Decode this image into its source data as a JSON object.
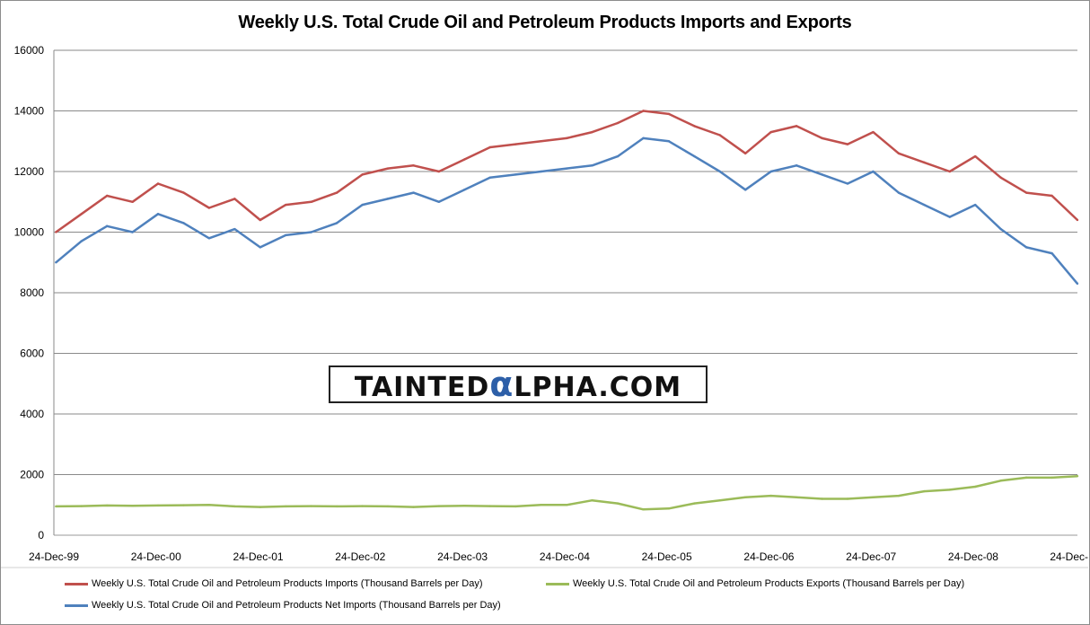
{
  "chart_data": {
    "type": "line",
    "title": "Weekly U.S. Total Crude Oil and Petroleum Products Imports and Exports",
    "xlabel": "",
    "ylabel": "",
    "x_tick_labels": [
      "24-Dec-99",
      "24-Dec-00",
      "24-Dec-01",
      "24-Dec-02",
      "24-Dec-03",
      "24-Dec-04",
      "24-Dec-05",
      "24-Dec-06",
      "24-Dec-07",
      "24-Dec-08",
      "24-Dec-"
    ],
    "y_tick_labels": [
      "0",
      "2000",
      "4000",
      "6000",
      "8000",
      "10000",
      "12000",
      "14000",
      "16000"
    ],
    "ylim": [
      0,
      16000
    ],
    "x_unit": "year",
    "xlim": [
      1999.98,
      2010.0
    ],
    "grid": "horizontal",
    "legend_position": "bottom",
    "series": [
      {
        "name": "Weekly U.S. Total Crude Oil and Petroleum Products Imports  (Thousand  Barrels per Day)",
        "color": "#c0504d",
        "x": [
          2000.0,
          2000.25,
          2000.5,
          2000.75,
          2001.0,
          2001.25,
          2001.5,
          2001.75,
          2002.0,
          2002.25,
          2002.5,
          2002.75,
          2003.0,
          2003.25,
          2003.5,
          2003.75,
          2004.0,
          2004.25,
          2004.5,
          2004.75,
          2005.0,
          2005.25,
          2005.5,
          2005.75,
          2006.0,
          2006.25,
          2006.5,
          2006.75,
          2007.0,
          2007.25,
          2007.5,
          2007.75,
          2008.0,
          2008.25,
          2008.5,
          2008.75,
          2009.0,
          2009.25,
          2009.5,
          2009.75,
          2010.0
        ],
        "values": [
          10000,
          10600,
          11200,
          11000,
          11600,
          11300,
          10800,
          11100,
          10400,
          10900,
          11000,
          11300,
          11900,
          12100,
          12200,
          12000,
          12400,
          12800,
          12900,
          13000,
          13100,
          13300,
          13600,
          14000,
          13900,
          13500,
          13200,
          12600,
          13300,
          13500,
          13100,
          12900,
          13300,
          12600,
          12300,
          12000,
          12500,
          11800,
          11300,
          11200,
          10400
        ]
      },
      {
        "name": "Weekly U.S. Total Crude Oil and Petroleum Products Exports  (Thousand  Barrels per Day)",
        "color": "#9bbb59",
        "x": [
          2000.0,
          2000.25,
          2000.5,
          2000.75,
          2001.0,
          2001.25,
          2001.5,
          2001.75,
          2002.0,
          2002.25,
          2002.5,
          2002.75,
          2003.0,
          2003.25,
          2003.5,
          2003.75,
          2004.0,
          2004.25,
          2004.5,
          2004.75,
          2005.0,
          2005.25,
          2005.5,
          2005.75,
          2006.0,
          2006.25,
          2006.5,
          2006.75,
          2007.0,
          2007.25,
          2007.5,
          2007.75,
          2008.0,
          2008.25,
          2008.5,
          2008.75,
          2009.0,
          2009.25,
          2009.5,
          2009.75,
          2010.0
        ],
        "values": [
          950,
          960,
          980,
          970,
          980,
          990,
          1000,
          950,
          930,
          950,
          960,
          950,
          960,
          950,
          930,
          960,
          970,
          960,
          950,
          1000,
          1000,
          1150,
          1050,
          850,
          880,
          1050,
          1150,
          1250,
          1300,
          1250,
          1200,
          1200,
          1250,
          1300,
          1450,
          1500,
          1600,
          1800,
          1900,
          1900,
          1950
        ]
      },
      {
        "name": "Weekly U.S. Total Crude Oil and Petroleum Products Net Imports  (Thousand  Barrels per Day)",
        "color": "#4f81bd",
        "x": [
          2000.0,
          2000.25,
          2000.5,
          2000.75,
          2001.0,
          2001.25,
          2001.5,
          2001.75,
          2002.0,
          2002.25,
          2002.5,
          2002.75,
          2003.0,
          2003.25,
          2003.5,
          2003.75,
          2004.0,
          2004.25,
          2004.5,
          2004.75,
          2005.0,
          2005.25,
          2005.5,
          2005.75,
          2006.0,
          2006.25,
          2006.5,
          2006.75,
          2007.0,
          2007.25,
          2007.5,
          2007.75,
          2008.0,
          2008.25,
          2008.5,
          2008.75,
          2009.0,
          2009.25,
          2009.5,
          2009.75,
          2010.0
        ],
        "values": [
          9000,
          9700,
          10200,
          10000,
          10600,
          10300,
          9800,
          10100,
          9500,
          9900,
          10000,
          10300,
          10900,
          11100,
          11300,
          11000,
          11400,
          11800,
          11900,
          12000,
          12100,
          12200,
          12500,
          13100,
          13000,
          12500,
          12000,
          11400,
          12000,
          12200,
          11900,
          11600,
          12000,
          11300,
          10900,
          10500,
          10900,
          10100,
          9500,
          9300,
          8300
        ]
      }
    ]
  },
  "watermark": {
    "part1": "TAINTED",
    "alpha": "α",
    "part2": "LPHA.COM"
  }
}
